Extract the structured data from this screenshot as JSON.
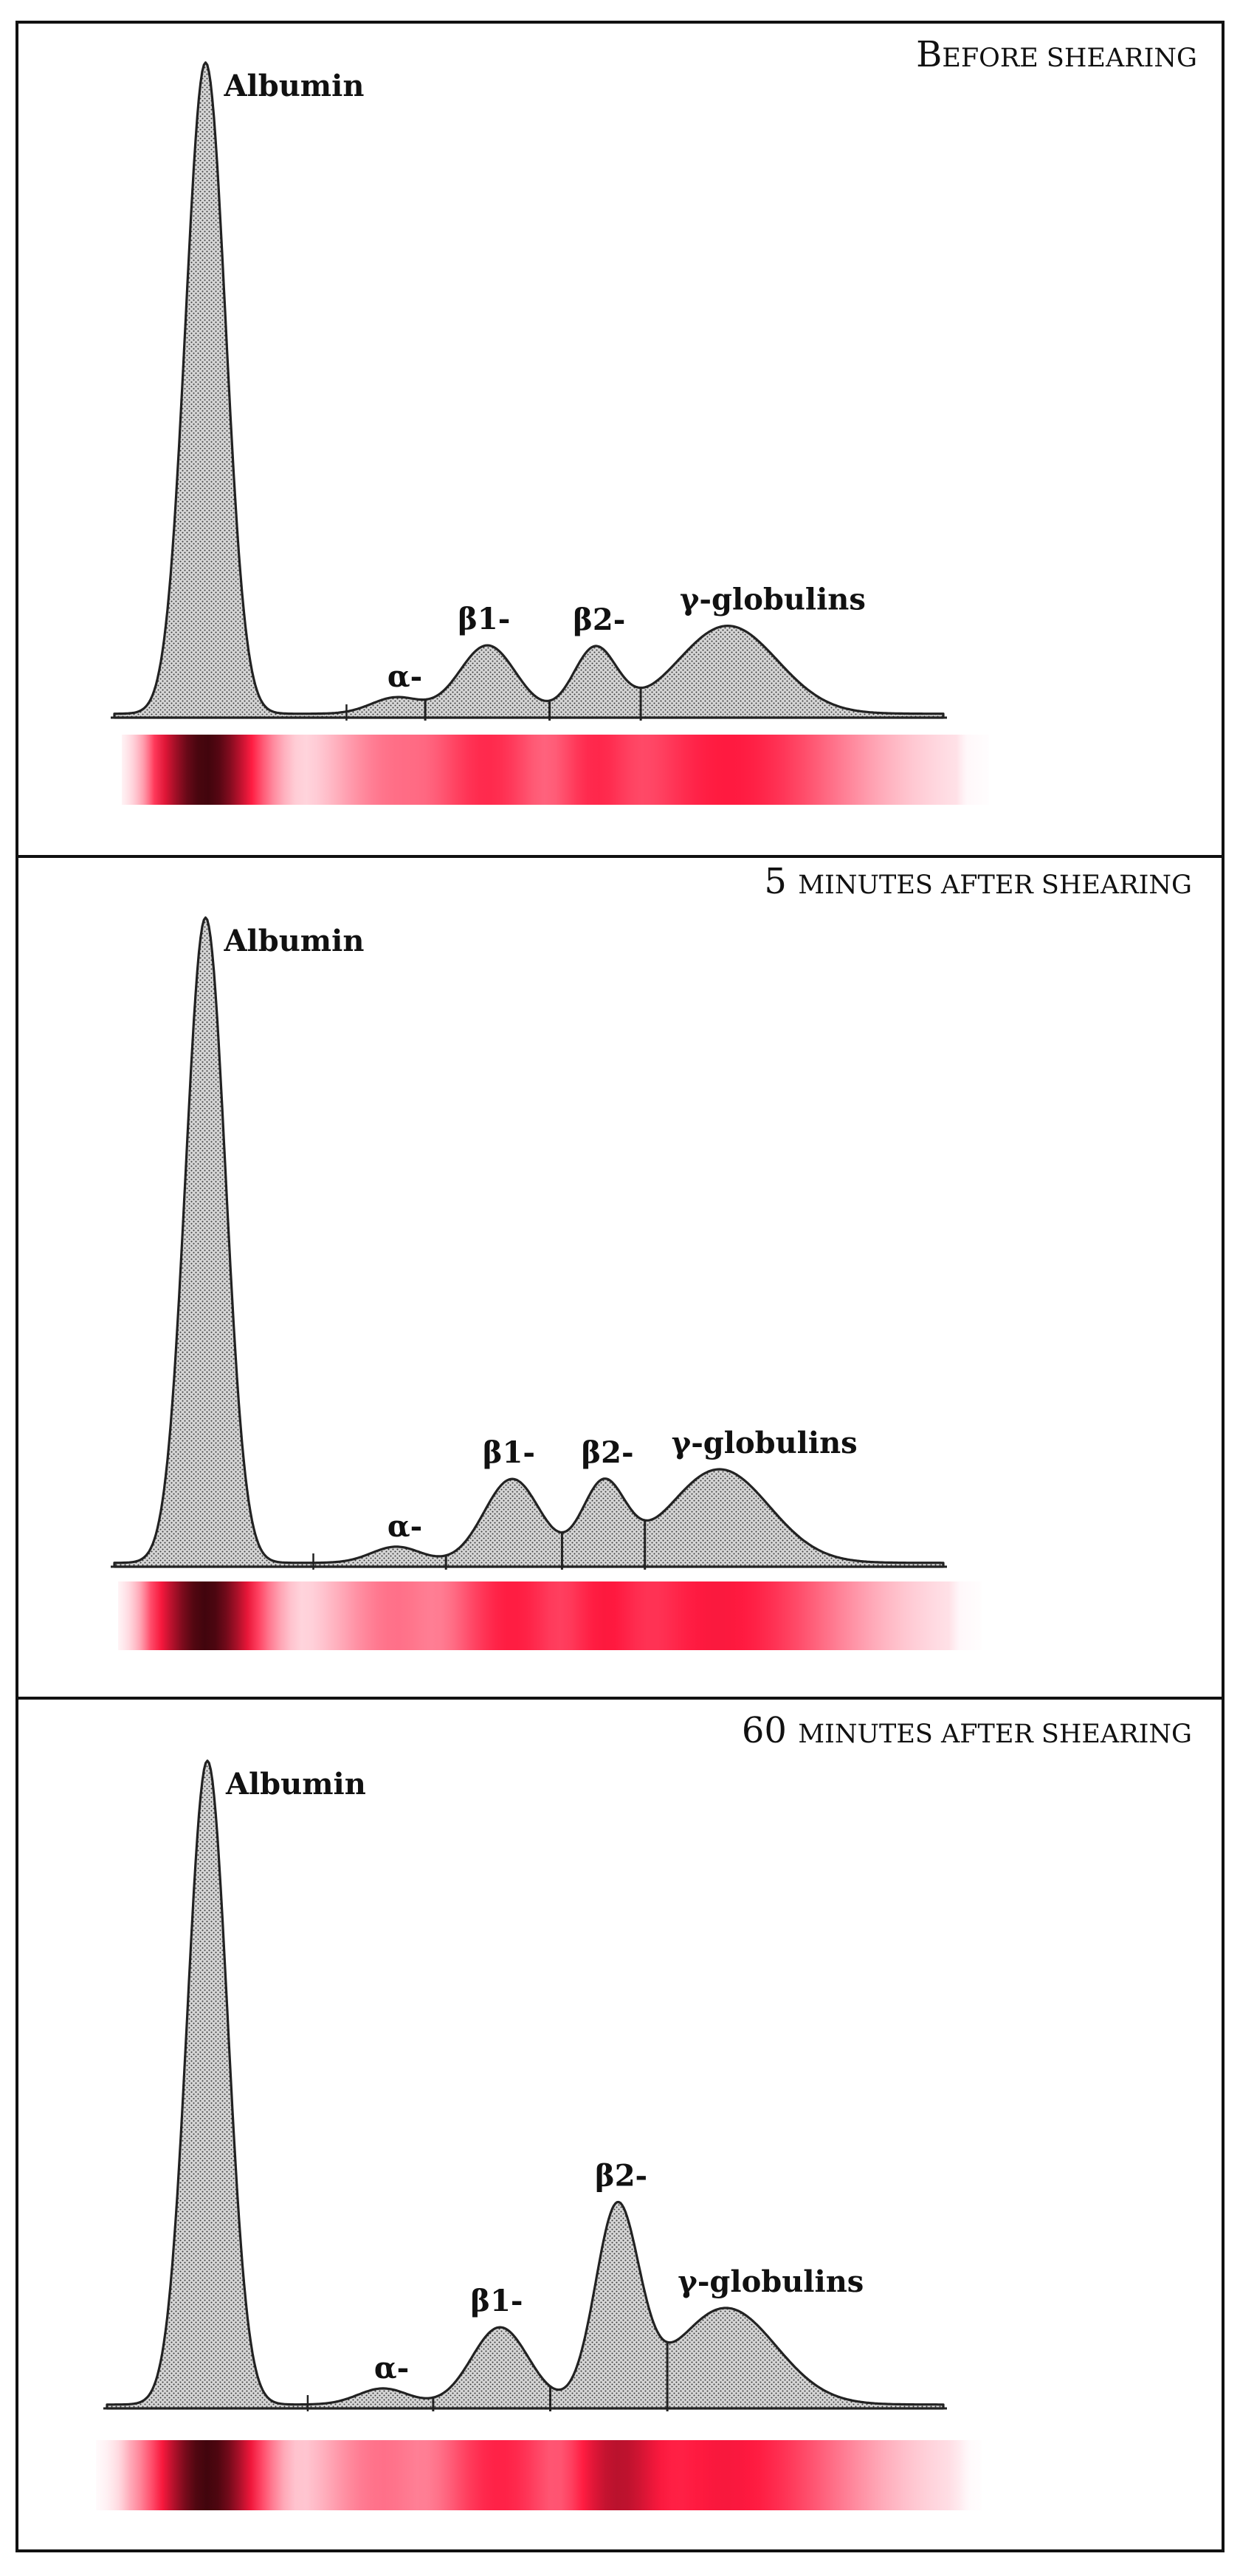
{
  "chart_data": [
    {
      "type": "area",
      "title": "Before shearing",
      "title_cap": "B",
      "title_rest": "EFORE SHEARING",
      "peaks": [
        {
          "label": "Albumin",
          "mobility": 0.11,
          "height": 1.0
        },
        {
          "label": "α-",
          "mobility": 0.34,
          "height": 0.025
        },
        {
          "label": "β1-",
          "mobility": 0.45,
          "height": 0.105
        },
        {
          "label": "β2-",
          "mobility": 0.58,
          "height": 0.1
        },
        {
          "label": "γ-globulins",
          "mobility": 0.74,
          "height": 0.135
        }
      ],
      "fraction_boundaries": [
        0.28,
        0.375,
        0.525,
        0.635
      ]
    },
    {
      "type": "area",
      "title": "5 minutes after shearing",
      "title_cap": "5 ",
      "title_rest": "MINUTES AFTER SHEARING",
      "peaks": [
        {
          "label": "Albumin",
          "mobility": 0.11,
          "height": 1.0
        },
        {
          "label": "α-",
          "mobility": 0.34,
          "height": 0.025
        },
        {
          "label": "β1-",
          "mobility": 0.48,
          "height": 0.13
        },
        {
          "label": "β2-",
          "mobility": 0.59,
          "height": 0.12
        },
        {
          "label": "γ-globulins",
          "mobility": 0.73,
          "height": 0.145
        }
      ],
      "fraction_boundaries": [
        0.24,
        0.4,
        0.54,
        0.64
      ]
    },
    {
      "type": "area",
      "title": "60 minutes after shearing",
      "title_cap": "60 ",
      "title_rest": "MINUTES AFTER SHEARING",
      "peaks": [
        {
          "label": "Albumin",
          "mobility": 0.12,
          "height": 1.0
        },
        {
          "label": "α-",
          "mobility": 0.33,
          "height": 0.025
        },
        {
          "label": "β1-",
          "mobility": 0.47,
          "height": 0.12
        },
        {
          "label": "β2-",
          "mobility": 0.61,
          "height": 0.3
        },
        {
          "label": "γ-globulins",
          "mobility": 0.74,
          "height": 0.15
        }
      ],
      "fraction_boundaries": [
        0.24,
        0.39,
        0.53,
        0.67
      ]
    }
  ]
}
